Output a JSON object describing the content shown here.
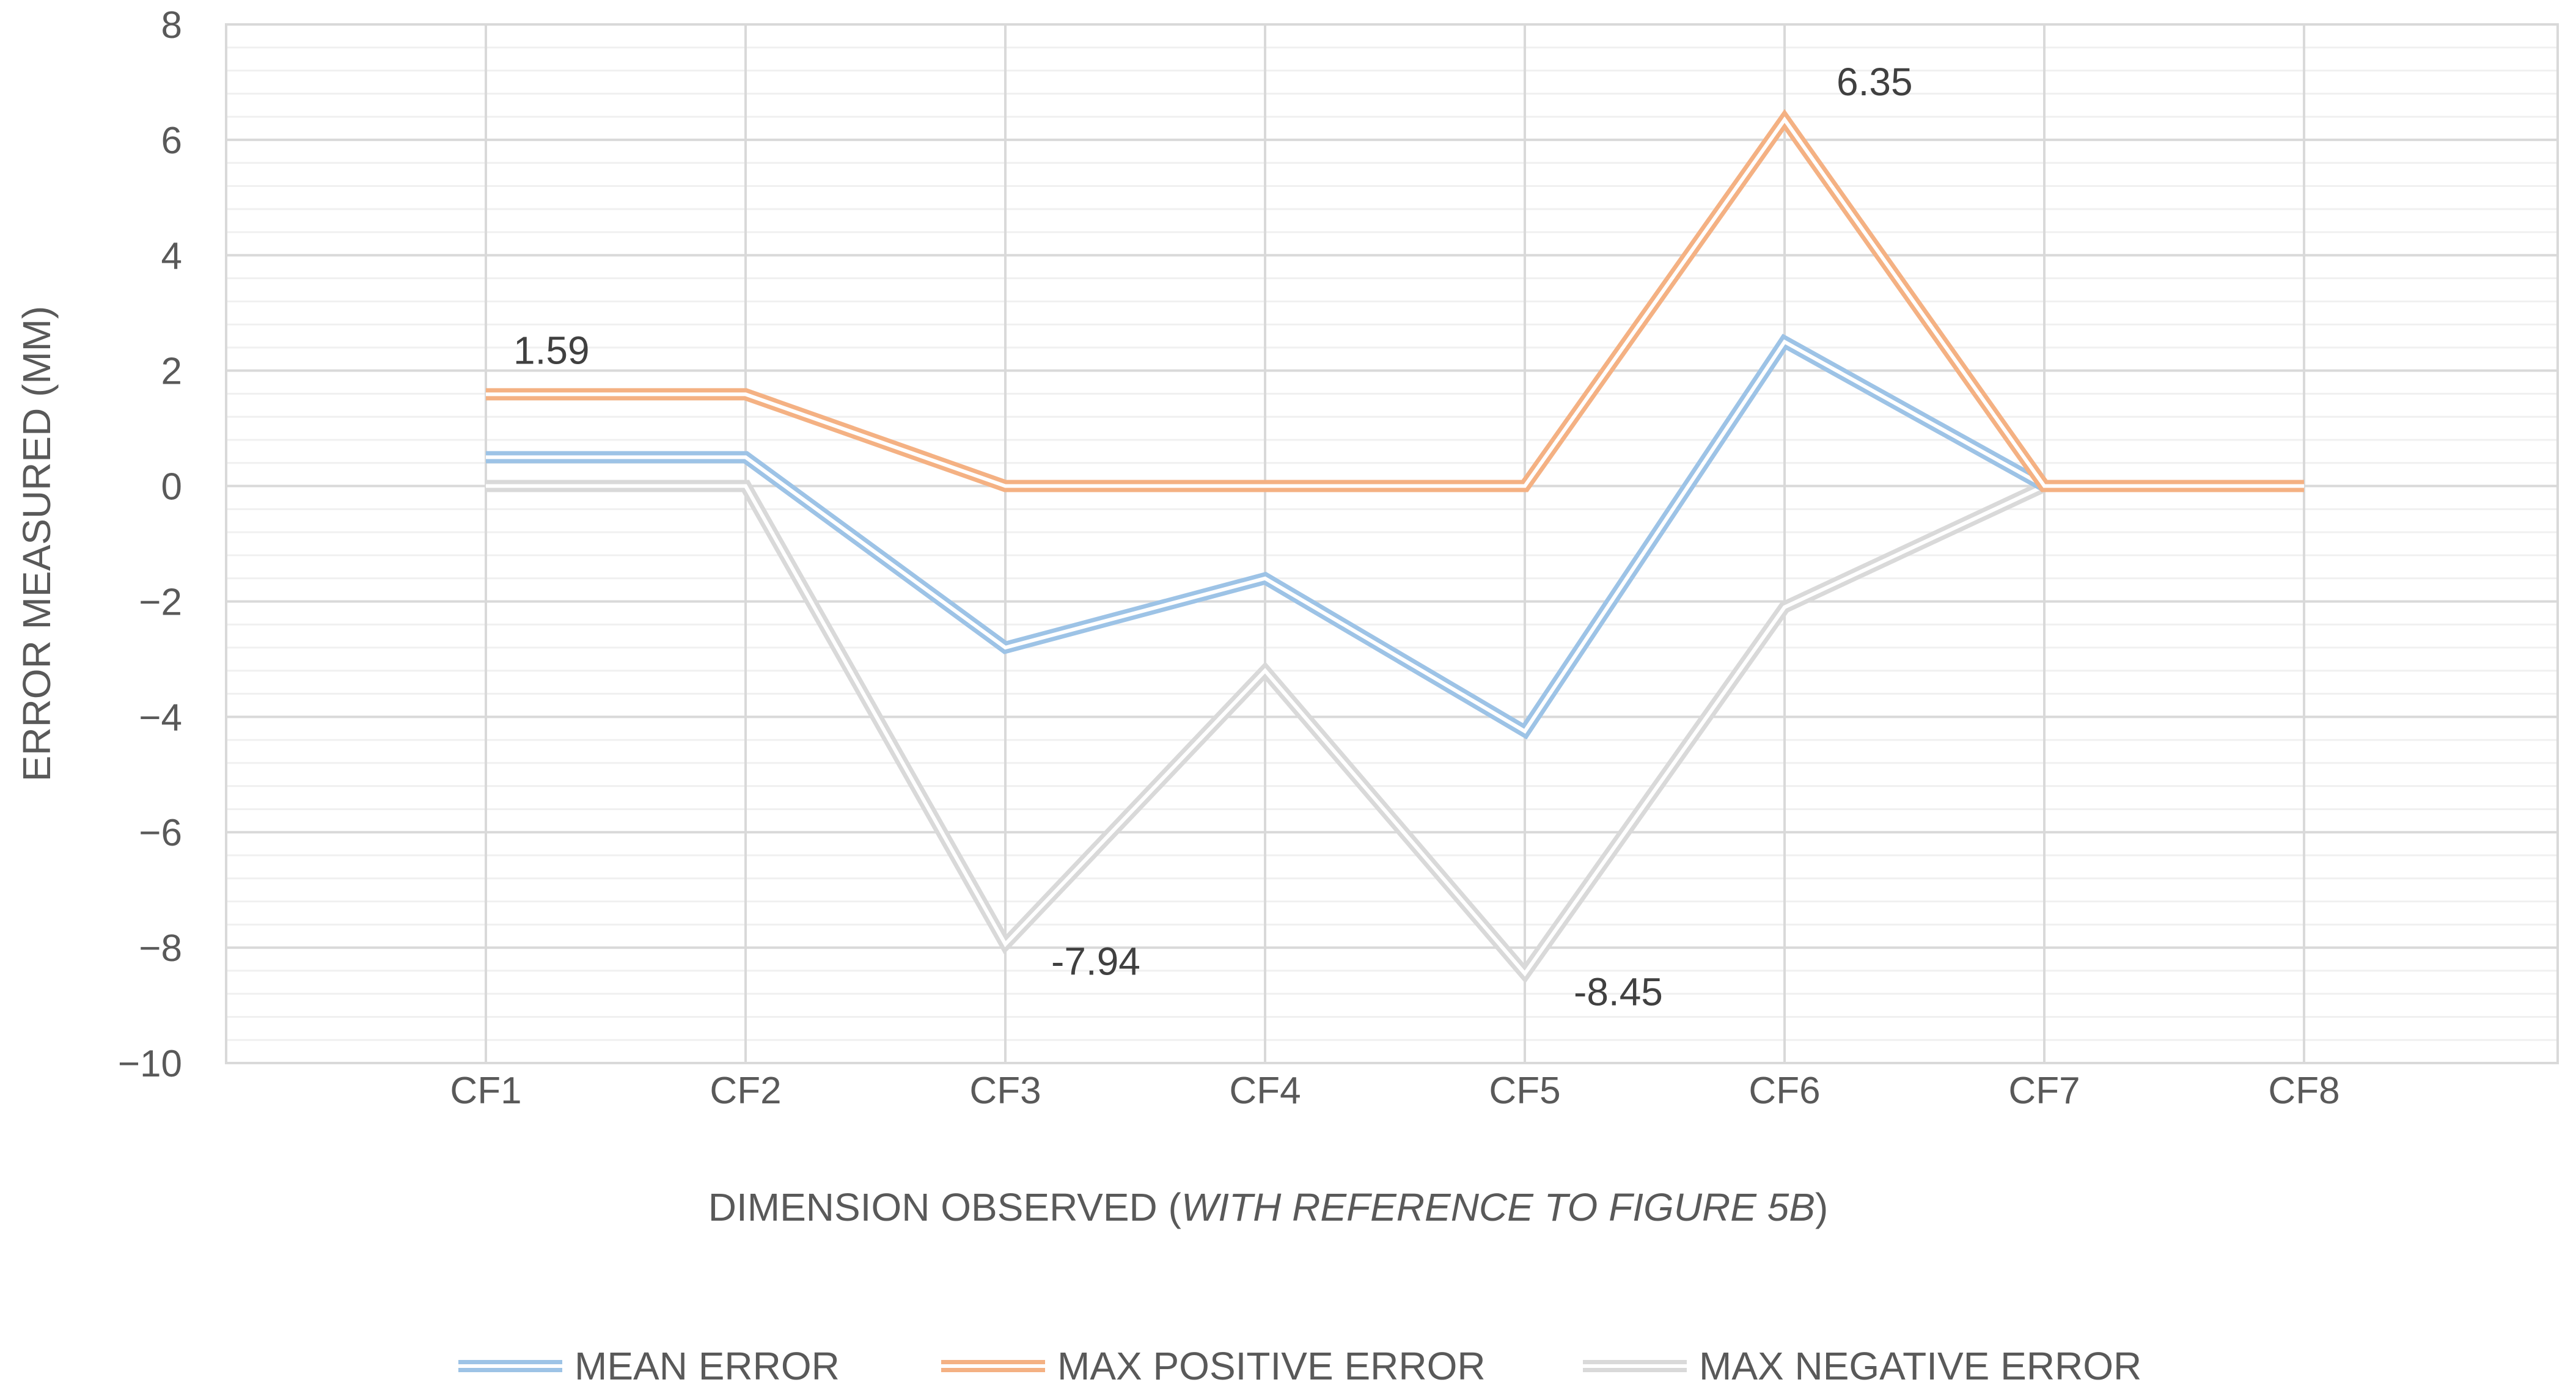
{
  "chart_data": {
    "type": "line",
    "title": "",
    "categories": [
      "CF1",
      "CF2",
      "CF3",
      "CF4",
      "CF5",
      "CF6",
      "CF7",
      "CF8"
    ],
    "series": [
      {
        "name": "MEAN ERROR",
        "color": "#9dc3e6",
        "values": [
          0.5,
          0.5,
          -2.8,
          -1.6,
          -4.25,
          2.5,
          0,
          0
        ]
      },
      {
        "name": "MAX POSITIVE ERROR",
        "color": "#f4b183",
        "values": [
          1.59,
          1.59,
          0,
          0,
          0,
          6.35,
          0,
          0
        ]
      },
      {
        "name": "MAX NEGATIVE ERROR",
        "color": "#d9d9d9",
        "values": [
          0,
          0,
          -7.94,
          -3.2,
          -8.45,
          -2.1,
          0,
          0
        ]
      }
    ],
    "data_labels": [
      {
        "series": 1,
        "index": 0,
        "text": "1.59"
      },
      {
        "series": 1,
        "index": 5,
        "text": "6.35"
      },
      {
        "series": 2,
        "index": 2,
        "text": "-7.94"
      },
      {
        "series": 2,
        "index": 4,
        "text": "-8.45"
      }
    ],
    "ylabel": "ERROR MEASURED (MM)",
    "xlabel": {
      "prefix": "DIMENSION OBSERVED (",
      "italic": "WITH REFERENCE TO FIGURE 5B",
      "suffix": ")"
    },
    "ylim": [
      -10,
      8
    ],
    "yticks": [
      8,
      6,
      4,
      2,
      0,
      -2,
      -4,
      -6,
      -8,
      -10
    ],
    "ytick_labels": [
      "8",
      "6",
      "4",
      "2",
      "0",
      "−2",
      "−4",
      "−6",
      "−8",
      "−10"
    ],
    "major_step": 2,
    "minor_step": 0.4,
    "grid": true,
    "legend_position": "bottom"
  }
}
